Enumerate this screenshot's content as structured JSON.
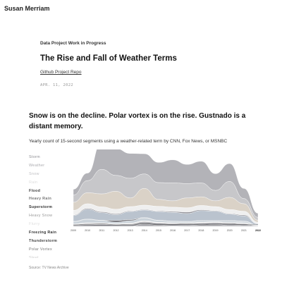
{
  "site": {
    "name": "Susan Merriam"
  },
  "article": {
    "eyebrow": "Data Project Work in Progress",
    "title": "The Rise and Fall of Weather Terms",
    "repo_link": "Github Project Repo",
    "date": "APR. 11, 2022",
    "headline": "Snow is on the decline. Polar vortex is on the rise. Gustnado is a distant memory.",
    "subtitle": "Yearly count of 15-second segments using a weather-related term by CNN, Fox News, or MSNBC",
    "source": "Source: TV News Archive"
  },
  "chart_data": {
    "type": "area",
    "x": [
      "2009",
      "2010",
      "2011",
      "2012",
      "2013",
      "2014",
      "2015",
      "2016",
      "2017",
      "2018",
      "2019",
      "2020",
      "2021",
      "2022"
    ],
    "highlighted_x": "2022",
    "series": [
      {
        "name": "Storm",
        "color": "#a6a6ab",
        "label_color": "#8e8e93",
        "label_weight": "400",
        "values": [
          0.2,
          0.26,
          0.95,
          0.93,
          0.86,
          0.7,
          0.7,
          0.8,
          0.66,
          0.75,
          0.58,
          0.62,
          0.35,
          0.14
        ]
      },
      {
        "name": "Weather",
        "color": "#bdbdc1",
        "label_color": "#aaaaae",
        "label_weight": "400",
        "values": [
          0.25,
          0.42,
          0.85,
          0.55,
          0.68,
          0.5,
          0.58,
          0.62,
          0.5,
          0.48,
          0.36,
          0.55,
          0.18,
          0.1
        ]
      },
      {
        "name": "Snow",
        "color": "#d4cabd",
        "label_color": "#c0c0c4",
        "label_weight": "400",
        "values": [
          0.28,
          0.38,
          0.45,
          0.62,
          0.3,
          0.58,
          0.24,
          0.22,
          0.34,
          0.3,
          0.2,
          0.42,
          0.26,
          0.07
        ]
      },
      {
        "name": "Rain",
        "color": "#ececec",
        "label_color": "#dcdcdc",
        "label_weight": "400",
        "values": [
          0.16,
          0.16,
          0.17,
          0.16,
          0.15,
          0.15,
          0.16,
          0.15,
          0.15,
          0.15,
          0.14,
          0.14,
          0.13,
          0.05
        ]
      },
      {
        "name": "Flood",
        "color": "#7e7e86",
        "label_color": "#444444",
        "label_weight": "700",
        "values": [
          0.02,
          0.03,
          0.03,
          0.03,
          0.02,
          0.02,
          0.02,
          0.03,
          0.05,
          0.03,
          0.02,
          0.02,
          0.03,
          0.01
        ]
      },
      {
        "name": "Heavy Rain",
        "color": "#aeb9c6",
        "label_color": "#777777",
        "label_weight": "700",
        "values": [
          0.2,
          0.34,
          0.26,
          0.2,
          0.28,
          0.26,
          0.3,
          0.3,
          0.27,
          0.34,
          0.32,
          0.22,
          0.18,
          0.04
        ]
      },
      {
        "name": "Superstorm",
        "color": "#5f5f66",
        "label_color": "#333333",
        "label_weight": "700",
        "values": [
          0.01,
          0.01,
          0.01,
          0.06,
          0.04,
          0.01,
          0.01,
          0.01,
          0.01,
          0.01,
          0.01,
          0.01,
          0.01,
          0.0
        ]
      },
      {
        "name": "Heavy Snow",
        "color": "#c2cbd4",
        "label_color": "#999999",
        "label_weight": "400",
        "values": [
          0.08,
          0.12,
          0.08,
          0.05,
          0.08,
          0.1,
          0.06,
          0.05,
          0.04,
          0.05,
          0.04,
          0.06,
          0.05,
          0.01
        ]
      },
      {
        "name": "Flurry",
        "color": "#e7e7e7",
        "label_color": "#dcdcdc",
        "label_weight": "400",
        "values": [
          0.02,
          0.03,
          0.03,
          0.02,
          0.03,
          0.03,
          0.02,
          0.02,
          0.02,
          0.02,
          0.02,
          0.02,
          0.02,
          0.0
        ]
      },
      {
        "name": "Freezing Rain",
        "color": "#8d8d94",
        "label_color": "#333333",
        "label_weight": "700",
        "values": [
          0.02,
          0.04,
          0.03,
          0.02,
          0.03,
          0.03,
          0.02,
          0.02,
          0.02,
          0.02,
          0.02,
          0.03,
          0.02,
          0.0
        ]
      },
      {
        "name": "Thunderstorm",
        "color": "#6a6a71",
        "label_color": "#444444",
        "label_weight": "700",
        "values": [
          0.04,
          0.05,
          0.06,
          0.05,
          0.05,
          0.05,
          0.06,
          0.06,
          0.05,
          0.05,
          0.05,
          0.05,
          0.04,
          0.01
        ]
      },
      {
        "name": "Polar Vortex",
        "color": "#9a9aa0",
        "label_color": "#777777",
        "label_weight": "400",
        "values": [
          0.0,
          0.0,
          0.0,
          0.0,
          0.0,
          0.08,
          0.04,
          0.02,
          0.03,
          0.05,
          0.06,
          0.03,
          0.04,
          0.02
        ]
      }
    ],
    "legend_cut_off": {
      "name": "Sleet",
      "color": "#cccccc"
    }
  }
}
